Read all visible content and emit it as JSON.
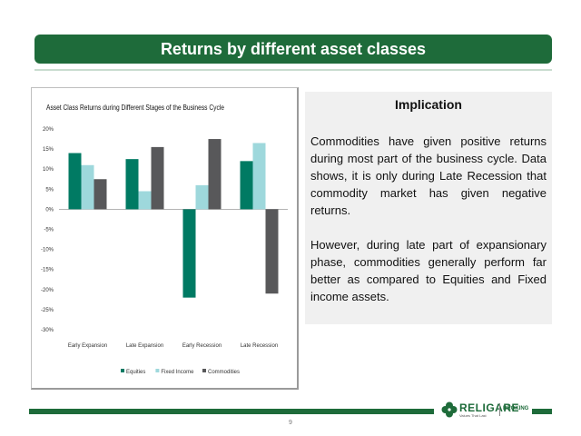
{
  "slide": {
    "title": "Returns by different asset classes",
    "page_number": "9"
  },
  "implication": {
    "heading": "Implication",
    "para1": "Commodities have given positive returns during most part of the business cycle. Data shows, it is only during Late Recession that commodity market has given negative returns.",
    "para2": "However, during late part of expansionary phase, commodities generally perform far better as compared to Equities and Fixed income assets."
  },
  "logo": {
    "brand": "RELIGARE",
    "tagline": "Values That Last",
    "division": "BROKING"
  },
  "colors": {
    "brand_green": "#1e6b3a",
    "equities": "#007a63",
    "fixed_income": "#9ed8dc",
    "commodities": "#58585a"
  },
  "chart_data": {
    "type": "bar",
    "title": "Asset Class Returns during Different Stages of the Business Cycle",
    "categories": [
      "Early Expansion",
      "Late Expansion",
      "Early Recession",
      "Late Recession"
    ],
    "series": [
      {
        "name": "Equities",
        "values": [
          14,
          12.5,
          -22,
          12
        ]
      },
      {
        "name": "Fixed Income",
        "values": [
          11,
          4.5,
          6,
          16.5
        ]
      },
      {
        "name": "Commodities",
        "values": [
          7.5,
          15.5,
          17.5,
          -21
        ]
      }
    ],
    "ylim": [
      -30,
      20
    ],
    "yticks": [
      -30,
      -25,
      -20,
      -15,
      -10,
      -5,
      0,
      5,
      10,
      15,
      20
    ],
    "ytick_labels": [
      "-30%",
      "-25%",
      "-20%",
      "-15%",
      "-10%",
      "-5%",
      "0%",
      "5%",
      "10%",
      "15%",
      "20%"
    ],
    "grid": false,
    "legend_position": "bottom"
  }
}
